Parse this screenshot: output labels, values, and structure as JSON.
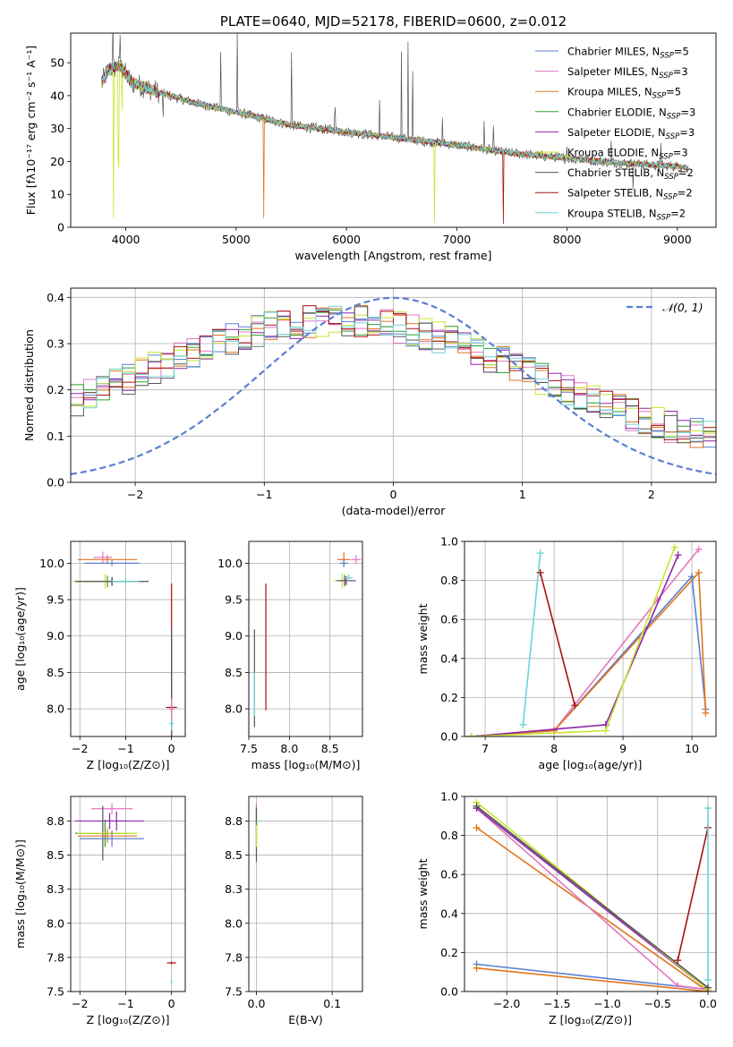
{
  "colors": {
    "chabrier_miles": "#5B7FD1",
    "salpeter_miles": "#E377C2",
    "kroupa_miles": "#E0761E",
    "chabrier_elodie": "#2CA02C",
    "salpeter_elodie": "#8E24AA",
    "kroupa_elodie": "#C8E62D",
    "chabrier_stelib": "#555555",
    "salpeter_stelib": "#AA1111",
    "kroupa_stelib": "#6DD3D6",
    "gauss": "#5B7FD1",
    "grid": "#B0B0B0"
  },
  "chart_data": [
    {
      "id": "spectrum",
      "type": "line",
      "title": "PLATE=0640, MJD=52178, FIBERID=0600, z=0.012",
      "xlabel": "wavelength [Angstrom, rest frame]",
      "ylabel": "Flux [fλ10⁻¹⁷ erg cm⁻² s⁻¹ A⁻¹]",
      "xlim": [
        3500,
        9350
      ],
      "ylim": [
        0,
        59
      ],
      "xticks": [
        4000,
        5000,
        6000,
        7000,
        8000,
        9000
      ],
      "yticks": [
        0,
        10,
        20,
        30,
        40,
        50
      ],
      "grid": false,
      "legend_position": "top-right",
      "series": [
        {
          "name": "Chabrier MILES, N",
          "sub": "SSP",
          "suffix": "=5",
          "color_key": "chabrier_miles"
        },
        {
          "name": "Salpeter MILES, N",
          "sub": "SSP",
          "suffix": "=3",
          "color_key": "salpeter_miles"
        },
        {
          "name": "Kroupa MILES, N",
          "sub": "SSP",
          "suffix": "=5",
          "color_key": "kroupa_miles"
        },
        {
          "name": "Chabrier ELODIE, N",
          "sub": "SSP",
          "suffix": "=3",
          "color_key": "chabrier_elodie"
        },
        {
          "name": "Salpeter ELODIE, N",
          "sub": "SSP",
          "suffix": "=3",
          "color_key": "salpeter_elodie"
        },
        {
          "name": "Kroupa ELODIE, N",
          "sub": "SSP",
          "suffix": "=3",
          "color_key": "kroupa_elodie"
        },
        {
          "name": "Chabrier STELIB, N",
          "sub": "SSP",
          "suffix": "=2",
          "color_key": "chabrier_stelib"
        },
        {
          "name": "Salpeter STELIB, N",
          "sub": "SSP",
          "suffix": "=2",
          "color_key": "salpeter_stelib"
        },
        {
          "name": "Kroupa STELIB, N",
          "sub": "SSP",
          "suffix": "=2",
          "color_key": "kroupa_stelib"
        }
      ],
      "continuum": [
        [
          3780,
          44
        ],
        [
          3850,
          48
        ],
        [
          3950,
          49
        ],
        [
          4050,
          44
        ],
        [
          4300,
          41
        ],
        [
          4600,
          38
        ],
        [
          5000,
          35
        ],
        [
          5500,
          31
        ],
        [
          6000,
          29
        ],
        [
          6500,
          27
        ],
        [
          7000,
          25
        ],
        [
          7500,
          22.5
        ],
        [
          8000,
          21
        ],
        [
          8500,
          19.5
        ],
        [
          9000,
          18.5
        ],
        [
          9100,
          18
        ]
      ],
      "dips": [
        [
          3933,
          30,
          "kroupa_elodie"
        ],
        [
          3968,
          12,
          "kroupa_elodie"
        ],
        [
          3890,
          44,
          "kroupa_elodie"
        ],
        [
          4340,
          20,
          "chabrier_stelib"
        ],
        [
          5250,
          30,
          "kroupa_miles"
        ],
        [
          6800,
          25,
          "kroupa_elodie"
        ],
        [
          7420,
          22,
          "salpeter_stelib"
        ],
        [
          8600,
          6,
          "chabrier_stelib"
        ]
      ],
      "spikes": [
        [
          3880,
          12
        ],
        [
          3950,
          10
        ],
        [
          4340,
          12
        ],
        [
          4860,
          18
        ],
        [
          5010,
          25
        ],
        [
          5500,
          22
        ],
        [
          5895,
          6
        ],
        [
          6300,
          10
        ],
        [
          6500,
          28
        ],
        [
          6560,
          30
        ],
        [
          6600,
          20
        ],
        [
          6870,
          8
        ],
        [
          7250,
          8
        ],
        [
          7330,
          6
        ],
        [
          8000,
          5
        ],
        [
          8400,
          6
        ],
        [
          8850,
          8
        ]
      ]
    },
    {
      "id": "residuals",
      "type": "histogram",
      "xlabel": "(data-model)/error",
      "ylabel": "Normed distribution",
      "xlim": [
        -2.5,
        2.5
      ],
      "ylim": [
        0,
        0.42
      ],
      "xticks": [
        -2,
        -1,
        0,
        1,
        2
      ],
      "xticklabels": [
        "−2",
        "−1",
        "0",
        "1",
        "2"
      ],
      "yticks": [
        0.0,
        0.1,
        0.2,
        0.3,
        0.4
      ],
      "grid": true,
      "legend_position": "top-right",
      "gauss_label": "𝒩(0, 1)",
      "bin_width": 0.1,
      "hist_lo": -2.5,
      "hist_hi": 2.5,
      "hist_peak": 0.305,
      "hist_center": -0.45,
      "hist_sigma": 1.55
    },
    {
      "id": "age_vs_Z",
      "type": "errorbar",
      "xlabel": "Z [log₁₀(Z/Z⊙)]",
      "ylabel": "age  [log₁₀(age/yr)]",
      "xlim": [
        -2.2,
        0.3
      ],
      "ylim": [
        7.62,
        10.3
      ],
      "xticks": [
        -2,
        -1,
        0
      ],
      "xticklabels": [
        "−2",
        "−1",
        "0"
      ],
      "yticks": [
        8.0,
        8.5,
        9.0,
        9.5,
        10.0
      ],
      "grid": true,
      "points": [
        [
          -1.4,
          10.05,
          0.65,
          0.06,
          "kroupa_miles"
        ],
        [
          -1.3,
          10.0,
          0.6,
          0.04,
          "chabrier_miles"
        ],
        [
          -1.5,
          10.08,
          0.2,
          0.08,
          "salpeter_miles"
        ],
        [
          -1.4,
          9.75,
          0.7,
          0.08,
          "chabrier_elodie"
        ],
        [
          -1.3,
          9.75,
          0.6,
          0.06,
          "salpeter_elodie"
        ],
        [
          -1.45,
          9.75,
          0.7,
          0.1,
          "kroupa_elodie"
        ],
        [
          -1.3,
          9.75,
          0.8,
          0.06,
          "chabrier_stelib"
        ],
        [
          -1.0,
          9.75,
          0.3,
          0.06,
          "kroupa_stelib"
        ],
        [
          0.0,
          8.02,
          0.12,
          1.7,
          "salpeter_stelib"
        ],
        [
          0.0,
          8.0,
          0.05,
          1.1,
          "chabrier_stelib"
        ],
        [
          0.0,
          7.8,
          0.05,
          0.1,
          "kroupa_stelib"
        ],
        [
          0.0,
          8.0,
          0.05,
          0.15,
          "salpeter_miles"
        ]
      ]
    },
    {
      "id": "age_vs_mass",
      "type": "errorbar",
      "xlabel": "mass [log₁₀(M/M⊙)]",
      "ylabel": "",
      "xlim": [
        7.5,
        8.9
      ],
      "ylim": [
        7.62,
        10.3
      ],
      "xticks": [
        7.5,
        8.0,
        8.5
      ],
      "yticks": [
        8.0,
        8.5,
        9.0,
        9.5,
        10.0
      ],
      "grid": true,
      "points": [
        [
          8.67,
          10.05,
          0.08,
          0.1,
          "kroupa_miles"
        ],
        [
          8.67,
          10.0,
          0.05,
          0.05,
          "chabrier_miles"
        ],
        [
          8.82,
          10.05,
          0.06,
          0.06,
          "salpeter_miles"
        ],
        [
          8.68,
          9.76,
          0.1,
          0.08,
          "chabrier_elodie"
        ],
        [
          8.7,
          9.76,
          0.12,
          0.06,
          "salpeter_elodie"
        ],
        [
          8.65,
          9.76,
          0.1,
          0.1,
          "kroupa_elodie"
        ],
        [
          8.68,
          9.76,
          0.1,
          0.06,
          "chabrier_stelib"
        ],
        [
          8.73,
          9.8,
          0.05,
          0.05,
          "kroupa_stelib"
        ],
        [
          7.71,
          8.85,
          0.005,
          0.87,
          "salpeter_stelib"
        ],
        [
          7.57,
          8.42,
          0.005,
          0.67,
          "chabrier_stelib"
        ],
        [
          7.57,
          8.2,
          0.005,
          0.3,
          "kroupa_stelib"
        ]
      ]
    },
    {
      "id": "mw_vs_age",
      "type": "line",
      "xlabel": "age  [log₁₀(age/yr)]",
      "ylabel": "mass weight",
      "xlim": [
        6.7,
        10.35
      ],
      "ylim": [
        0,
        1.0
      ],
      "xticks": [
        7,
        8,
        9,
        10
      ],
      "yticks": [
        0.0,
        0.2,
        0.4,
        0.6,
        0.8,
        1.0
      ],
      "grid": true,
      "lines": [
        {
          "color_key": "chabrier_miles",
          "pts": [
            [
              6.8,
              0.0
            ],
            [
              8.0,
              0.03
            ],
            [
              10.0,
              0.82
            ],
            [
              10.2,
              0.14
            ]
          ]
        },
        {
          "color_key": "salpeter_miles",
          "pts": [
            [
              6.8,
              0.0
            ],
            [
              8.0,
              0.03
            ],
            [
              9.5,
              0.7
            ],
            [
              10.1,
              0.96
            ]
          ]
        },
        {
          "color_key": "kroupa_miles",
          "pts": [
            [
              6.8,
              0.0
            ],
            [
              8.0,
              0.03
            ],
            [
              10.1,
              0.84
            ],
            [
              10.2,
              0.12
            ]
          ]
        },
        {
          "color_key": "salpeter_elodie",
          "pts": [
            [
              6.8,
              0.0
            ],
            [
              8.75,
              0.06
            ],
            [
              9.8,
              0.93
            ]
          ]
        },
        {
          "color_key": "kroupa_elodie",
          "pts": [
            [
              6.8,
              0.0
            ],
            [
              8.75,
              0.03
            ],
            [
              9.75,
              0.97
            ]
          ]
        },
        {
          "color_key": "kroupa_stelib",
          "pts": [
            [
              7.55,
              0.06
            ],
            [
              7.8,
              0.94
            ]
          ]
        },
        {
          "color_key": "salpeter_stelib",
          "pts": [
            [
              7.8,
              0.84
            ],
            [
              8.3,
              0.16
            ]
          ]
        }
      ]
    },
    {
      "id": "mass_vs_Z",
      "type": "errorbar",
      "xlabel": "Z [log₁₀(Z/Z⊙)]",
      "ylabel": "mass [log₁₀(M/M⊙)]",
      "xlim": [
        -2.2,
        0.3
      ],
      "ylim": [
        7.5,
        8.93
      ],
      "xticks": [
        -2,
        -1,
        0
      ],
      "xticklabels": [
        "−2",
        "−1",
        "0"
      ],
      "yticks": [
        7.5,
        7.75,
        8.0,
        8.25,
        8.5,
        8.75
      ],
      "grid": true,
      "points": [
        [
          -1.3,
          8.84,
          0.45,
          0.04,
          "salpeter_miles"
        ],
        [
          -1.35,
          8.75,
          0.75,
          0.06,
          "salpeter_elodie"
        ],
        [
          -1.2,
          8.75,
          0.2,
          0.07,
          "salpeter_elodie"
        ],
        [
          -1.45,
          8.66,
          0.65,
          0.1,
          "chabrier_elodie"
        ],
        [
          -1.5,
          8.66,
          0.5,
          0.2,
          "chabrier_stelib"
        ],
        [
          -1.4,
          8.66,
          0.65,
          0.05,
          "kroupa_elodie"
        ],
        [
          -1.4,
          8.64,
          0.65,
          0.05,
          "kroupa_miles"
        ],
        [
          -1.3,
          8.62,
          0.7,
          0.06,
          "chabrier_miles"
        ],
        [
          0.0,
          7.71,
          0.1,
          0.01,
          "salpeter_stelib"
        ],
        [
          0.0,
          7.57,
          0.02,
          0.02,
          "kroupa_stelib"
        ]
      ]
    },
    {
      "id": "mass_vs_ebv",
      "type": "errorbar",
      "xlabel": "E(B-V)",
      "ylabel": "",
      "xlim": [
        -0.01,
        0.14
      ],
      "ylim": [
        7.5,
        8.93
      ],
      "xticks": [
        0.0,
        0.1
      ],
      "yticks": [
        7.5,
        7.75,
        8.0,
        8.25,
        8.5,
        8.75
      ],
      "grid": true,
      "points": [
        [
          0.0,
          8.84,
          0.0008,
          0.04,
          "salpeter_miles"
        ],
        [
          0.0,
          8.75,
          0.0008,
          0.06,
          "salpeter_elodie"
        ],
        [
          0.0,
          8.65,
          0.0008,
          0.2,
          "chabrier_stelib"
        ],
        [
          0.0,
          8.66,
          0.0008,
          0.1,
          "chabrier_elodie"
        ],
        [
          0.0,
          8.64,
          0.0008,
          0.08,
          "kroupa_elodie"
        ]
      ]
    },
    {
      "id": "mw_vs_Z",
      "type": "line",
      "xlabel": "Z [log₁₀(Z/Z⊙)]",
      "ylabel": "mass weight",
      "xlim": [
        -2.42,
        0.08
      ],
      "ylim": [
        0,
        1.0
      ],
      "xticks": [
        -2.0,
        -1.5,
        -1.0,
        -0.5,
        0.0
      ],
      "xticklabels": [
        "−2.0",
        "−1.5",
        "−1.0",
        "−0.5",
        "0.0"
      ],
      "yticks": [
        0.0,
        0.2,
        0.4,
        0.6,
        0.8,
        1.0
      ],
      "grid": true,
      "lines": [
        {
          "color_key": "chabrier_miles",
          "pts": [
            [
              -2.3,
              0.14
            ],
            [
              0.0,
              0.01
            ]
          ]
        },
        {
          "color_key": "kroupa_miles",
          "pts": [
            [
              -2.3,
              0.12
            ],
            [
              0.0,
              0.0
            ],
            [
              -2.3,
              0.84
            ]
          ]
        },
        {
          "color_key": "salpeter_miles",
          "pts": [
            [
              -2.3,
              0.94
            ],
            [
              -0.3,
              0.03
            ],
            [
              0.0,
              0.01
            ]
          ]
        },
        {
          "color_key": "salpeter_elodie",
          "pts": [
            [
              -2.3,
              0.94
            ],
            [
              0.0,
              0.01
            ]
          ]
        },
        {
          "color_key": "kroupa_elodie",
          "pts": [
            [
              -2.3,
              0.97
            ],
            [
              0.0,
              0.01
            ]
          ]
        },
        {
          "color_key": "chabrier_stelib",
          "pts": [
            [
              -2.3,
              0.95
            ],
            [
              0.0,
              0.02
            ]
          ]
        },
        {
          "color_key": "salpeter_stelib",
          "pts": [
            [
              -0.3,
              0.16
            ],
            [
              0.0,
              0.84
            ]
          ]
        },
        {
          "color_key": "kroupa_stelib",
          "pts": [
            [
              0.0,
              0.06
            ],
            [
              0.0,
              0.94
            ]
          ]
        }
      ]
    }
  ]
}
